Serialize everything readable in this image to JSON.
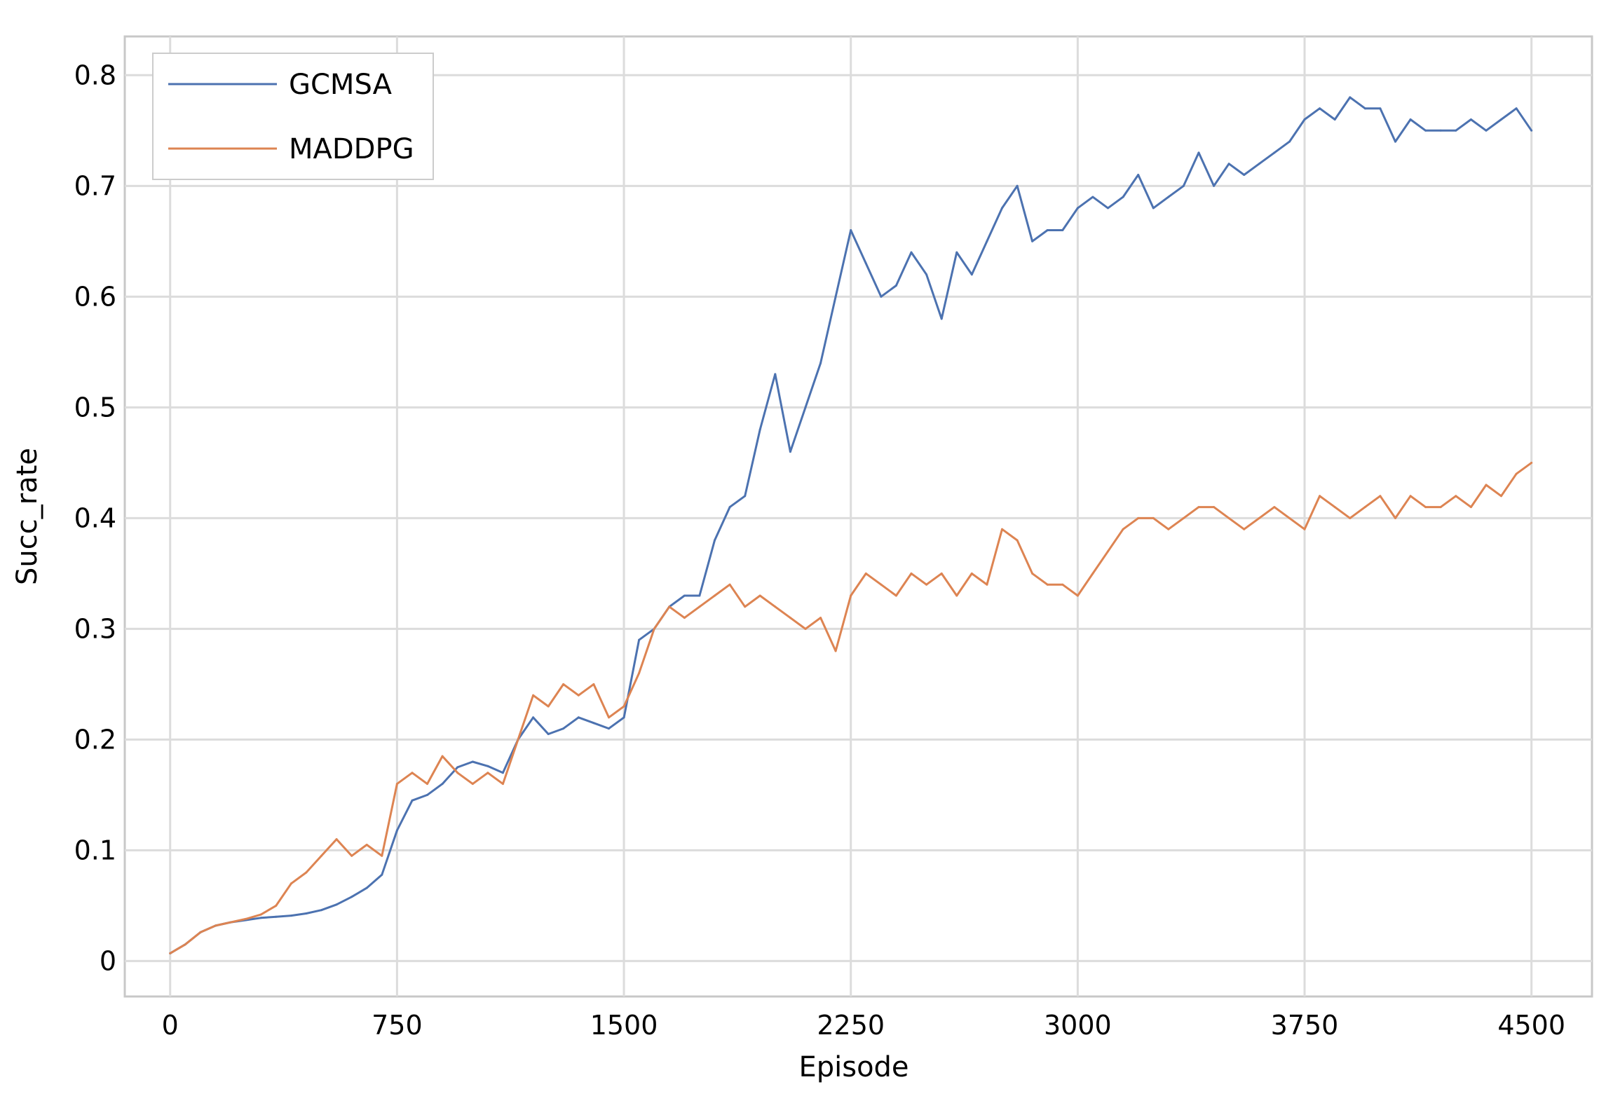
{
  "chart_data": {
    "type": "line",
    "title": "",
    "xlabel": "Episode",
    "ylabel": "Succ_rate",
    "xlim": [
      -150,
      4700
    ],
    "ylim": [
      -0.032,
      0.835
    ],
    "xticks": [
      0,
      750,
      1500,
      2250,
      3000,
      3750,
      4500
    ],
    "xtick_labels": [
      "0",
      "750",
      "1500",
      "2250",
      "3000",
      "3750",
      "4500"
    ],
    "yticks": [
      0,
      0.1,
      0.2,
      0.3,
      0.4,
      0.5,
      0.6,
      0.7,
      0.8
    ],
    "ytick_labels": [
      "0",
      "0.1",
      "0.2",
      "0.3",
      "0.4",
      "0.5",
      "0.6",
      "0.7",
      "0.8"
    ],
    "grid": true,
    "legend_position": "top-left",
    "series": [
      {
        "name": "GCMSA",
        "color": "#4c72b0",
        "x": [
          0,
          50,
          100,
          150,
          200,
          250,
          300,
          350,
          400,
          450,
          500,
          550,
          600,
          650,
          700,
          750,
          800,
          850,
          900,
          950,
          1000,
          1050,
          1100,
          1150,
          1200,
          1250,
          1300,
          1350,
          1400,
          1450,
          1500,
          1550,
          1600,
          1650,
          1700,
          1750,
          1800,
          1850,
          1900,
          1950,
          2000,
          2050,
          2100,
          2150,
          2200,
          2250,
          2300,
          2350,
          2400,
          2450,
          2500,
          2550,
          2600,
          2650,
          2700,
          2750,
          2800,
          2850,
          2900,
          2950,
          3000,
          3050,
          3100,
          3150,
          3200,
          3250,
          3300,
          3350,
          3400,
          3450,
          3500,
          3550,
          3600,
          3650,
          3700,
          3750,
          3800,
          3850,
          3900,
          3950,
          4000,
          4050,
          4100,
          4150,
          4200,
          4250,
          4300,
          4350,
          4400,
          4450,
          4500
        ],
        "values": [
          0.007,
          0.015,
          0.026,
          0.032,
          0.035,
          0.037,
          0.039,
          0.04,
          0.041,
          0.043,
          0.046,
          0.051,
          0.058,
          0.066,
          0.078,
          0.118,
          0.145,
          0.15,
          0.16,
          0.175,
          0.18,
          0.176,
          0.17,
          0.2,
          0.22,
          0.205,
          0.21,
          0.22,
          0.215,
          0.21,
          0.22,
          0.29,
          0.3,
          0.32,
          0.33,
          0.33,
          0.38,
          0.41,
          0.42,
          0.48,
          0.53,
          0.46,
          0.5,
          0.54,
          0.6,
          0.66,
          0.63,
          0.6,
          0.61,
          0.64,
          0.62,
          0.58,
          0.64,
          0.62,
          0.65,
          0.68,
          0.7,
          0.65,
          0.66,
          0.66,
          0.68,
          0.69,
          0.68,
          0.69,
          0.71,
          0.68,
          0.69,
          0.7,
          0.73,
          0.7,
          0.72,
          0.71,
          0.72,
          0.73,
          0.74,
          0.76,
          0.77,
          0.76,
          0.78,
          0.77,
          0.77,
          0.74,
          0.76,
          0.75,
          0.75,
          0.75,
          0.76,
          0.75,
          0.76,
          0.77,
          0.75
        ]
      },
      {
        "name": "MADDPG",
        "color": "#dd8452",
        "x": [
          0,
          50,
          100,
          150,
          200,
          250,
          300,
          350,
          400,
          450,
          500,
          550,
          600,
          650,
          700,
          750,
          800,
          850,
          900,
          950,
          1000,
          1050,
          1100,
          1150,
          1200,
          1250,
          1300,
          1350,
          1400,
          1450,
          1500,
          1550,
          1600,
          1650,
          1700,
          1750,
          1800,
          1850,
          1900,
          1950,
          2000,
          2050,
          2100,
          2150,
          2200,
          2250,
          2300,
          2350,
          2400,
          2450,
          2500,
          2550,
          2600,
          2650,
          2700,
          2750,
          2800,
          2850,
          2900,
          2950,
          3000,
          3050,
          3100,
          3150,
          3200,
          3250,
          3300,
          3350,
          3400,
          3450,
          3500,
          3550,
          3600,
          3650,
          3700,
          3750,
          3800,
          3850,
          3900,
          3950,
          4000,
          4050,
          4100,
          4150,
          4200,
          4250,
          4300,
          4350,
          4400,
          4450,
          4500
        ],
        "values": [
          0.007,
          0.015,
          0.026,
          0.032,
          0.035,
          0.038,
          0.042,
          0.05,
          0.07,
          0.08,
          0.095,
          0.11,
          0.095,
          0.105,
          0.095,
          0.16,
          0.17,
          0.16,
          0.185,
          0.17,
          0.16,
          0.17,
          0.16,
          0.2,
          0.24,
          0.23,
          0.25,
          0.24,
          0.25,
          0.22,
          0.23,
          0.26,
          0.3,
          0.32,
          0.31,
          0.32,
          0.33,
          0.34,
          0.32,
          0.33,
          0.32,
          0.31,
          0.3,
          0.31,
          0.28,
          0.33,
          0.35,
          0.34,
          0.33,
          0.35,
          0.34,
          0.35,
          0.33,
          0.35,
          0.34,
          0.39,
          0.38,
          0.35,
          0.34,
          0.34,
          0.33,
          0.35,
          0.37,
          0.39,
          0.4,
          0.4,
          0.39,
          0.4,
          0.41,
          0.41,
          0.4,
          0.39,
          0.4,
          0.41,
          0.4,
          0.39,
          0.42,
          0.41,
          0.4,
          0.41,
          0.42,
          0.4,
          0.42,
          0.41,
          0.41,
          0.42,
          0.41,
          0.43,
          0.42,
          0.44,
          0.45
        ]
      }
    ]
  }
}
